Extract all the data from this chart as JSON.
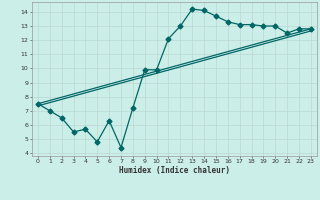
{
  "xlabel": "Humidex (Indice chaleur)",
  "bg_color": "#cceee8",
  "line_color": "#006666",
  "xlim": [
    -0.5,
    23.5
  ],
  "ylim": [
    3.8,
    14.7
  ],
  "xticks": [
    0,
    1,
    2,
    3,
    4,
    5,
    6,
    7,
    8,
    9,
    10,
    11,
    12,
    13,
    14,
    15,
    16,
    17,
    18,
    19,
    20,
    21,
    22,
    23
  ],
  "yticks": [
    4,
    5,
    6,
    7,
    8,
    9,
    10,
    11,
    12,
    13,
    14
  ],
  "line1_x": [
    0,
    1,
    2,
    3,
    4,
    5,
    6,
    7,
    8,
    9,
    10,
    11,
    12,
    13,
    14,
    15,
    16,
    17,
    18,
    19,
    20,
    21,
    22,
    23
  ],
  "line1_y": [
    7.5,
    7.0,
    6.5,
    5.5,
    5.7,
    4.8,
    6.3,
    4.4,
    7.2,
    9.9,
    9.9,
    12.1,
    13.0,
    14.2,
    14.1,
    13.7,
    13.3,
    13.1,
    13.1,
    13.0,
    13.0,
    12.5,
    12.8,
    12.8
  ],
  "line2_x": [
    0,
    23
  ],
  "line2_y": [
    7.5,
    12.8
  ],
  "line3_x": [
    0,
    23
  ],
  "line3_y": [
    7.5,
    12.8
  ],
  "marker": "D",
  "markersize": 2.5,
  "lw": 0.9
}
